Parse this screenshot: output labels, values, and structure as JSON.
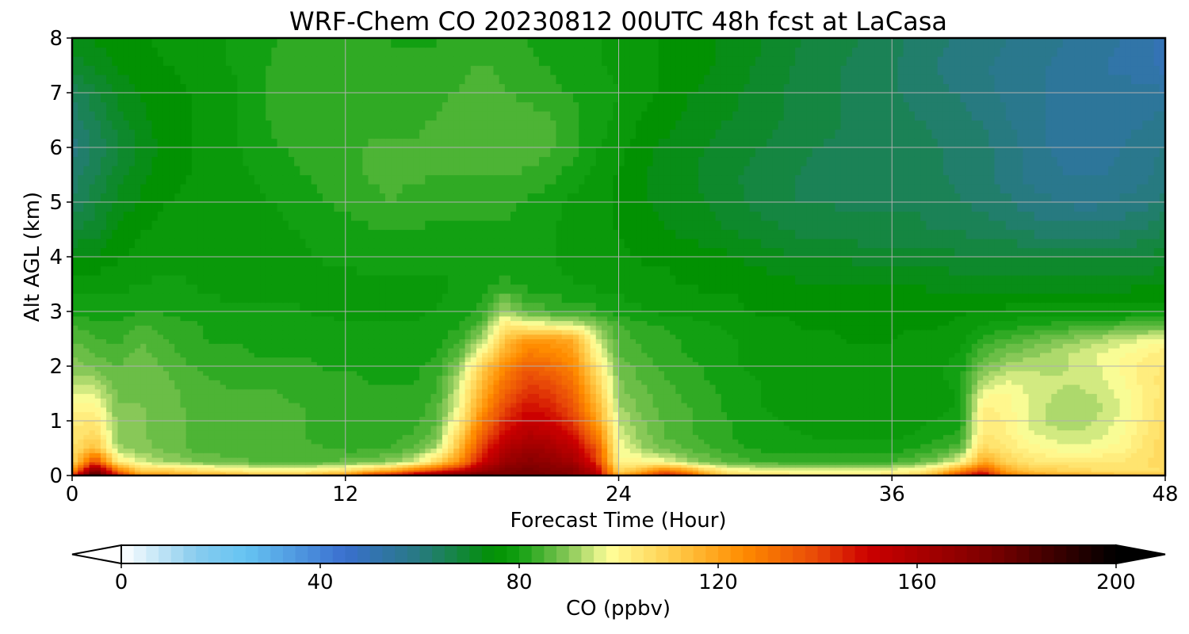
{
  "chart_data": {
    "type": "heatmap",
    "title": "WRF-Chem CO  20230812 00UTC 48h fcst at LaCasa",
    "xlabel": "Forecast Time (Hour)",
    "ylabel": "Alt AGL (km)",
    "xlim": [
      0,
      48
    ],
    "ylim": [
      0,
      8
    ],
    "xticks": [
      0,
      12,
      24,
      36,
      48
    ],
    "yticks": [
      0,
      1,
      2,
      3,
      4,
      5,
      6,
      7,
      8
    ],
    "grid": true,
    "x": [
      0,
      1,
      2,
      3,
      4,
      5,
      6,
      7,
      8,
      9,
      10,
      11,
      12,
      13,
      14,
      15,
      16,
      17,
      18,
      19,
      20,
      21,
      22,
      23,
      24,
      25,
      26,
      27,
      28,
      29,
      30,
      31,
      32,
      33,
      34,
      35,
      36,
      37,
      38,
      39,
      40,
      41,
      42,
      43,
      44,
      45,
      46,
      47,
      48
    ],
    "y": [
      0,
      0.1,
      0.25,
      0.5,
      0.75,
      1,
      1.25,
      1.5,
      1.75,
      2,
      2.25,
      2.5,
      2.75,
      3,
      3.5,
      4,
      4.5,
      5,
      5.5,
      6,
      6.5,
      7,
      7.5,
      8
    ],
    "z": [
      [
        150,
        190,
        150,
        125,
        125,
        120,
        120,
        120,
        115,
        115,
        115,
        120,
        125,
        145,
        155,
        165,
        175,
        180,
        180,
        175,
        175,
        175,
        170,
        160,
        120,
        135,
        150,
        145,
        120,
        110,
        108,
        105,
        105,
        105,
        105,
        105,
        105,
        110,
        120,
        145,
        160,
        130,
        125,
        120,
        120,
        118,
        116,
        115,
        115
      ],
      [
        120,
        175,
        130,
        110,
        110,
        108,
        105,
        102,
        100,
        100,
        100,
        102,
        105,
        112,
        118,
        130,
        140,
        150,
        165,
        172,
        175,
        172,
        170,
        155,
        108,
        115,
        130,
        120,
        108,
        100,
        98,
        98,
        97,
        97,
        97,
        97,
        98,
        100,
        108,
        125,
        140,
        120,
        112,
        110,
        108,
        106,
        106,
        106,
        106
      ],
      [
        108,
        140,
        104,
        95,
        92,
        90,
        88,
        88,
        86,
        86,
        86,
        86,
        87,
        88,
        90,
        95,
        108,
        125,
        150,
        165,
        170,
        168,
        162,
        145,
        100,
        100,
        98,
        92,
        88,
        86,
        84,
        84,
        83,
        83,
        83,
        83,
        84,
        86,
        90,
        98,
        120,
        110,
        105,
        104,
        104,
        104,
        104,
        106,
        108
      ],
      [
        106,
        115,
        92,
        90,
        88,
        86,
        85,
        84,
        84,
        84,
        84,
        84,
        83,
        83,
        84,
        86,
        92,
        115,
        142,
        158,
        165,
        162,
        155,
        138,
        98,
        92,
        88,
        86,
        84,
        82,
        81,
        80,
        80,
        80,
        80,
        80,
        80,
        81,
        83,
        86,
        108,
        104,
        100,
        98,
        97,
        98,
        100,
        104,
        108
      ],
      [
        104,
        108,
        90,
        89,
        88,
        86,
        85,
        84,
        84,
        84,
        84,
        83,
        83,
        83,
        83,
        84,
        88,
        108,
        135,
        150,
        158,
        155,
        148,
        130,
        96,
        90,
        86,
        84,
        83,
        81,
        80,
        79,
        79,
        78,
        78,
        78,
        78,
        79,
        80,
        82,
        104,
        102,
        97,
        95,
        94,
        95,
        98,
        103,
        108
      ],
      [
        103,
        104,
        90,
        89,
        88,
        86,
        85,
        84,
        85,
        84,
        84,
        83,
        83,
        82,
        82,
        83,
        86,
        102,
        128,
        145,
        152,
        150,
        142,
        122,
        94,
        89,
        86,
        84,
        83,
        81,
        80,
        79,
        78,
        78,
        77,
        77,
        77,
        78,
        79,
        80,
        103,
        101,
        96,
        93,
        92,
        94,
        97,
        102,
        107
      ],
      [
        100,
        100,
        89,
        89,
        88,
        86,
        85,
        84,
        84,
        84,
        84,
        83,
        82,
        82,
        82,
        82,
        85,
        98,
        122,
        140,
        148,
        146,
        138,
        118,
        92,
        88,
        85,
        84,
        82,
        80,
        79,
        78,
        77,
        77,
        77,
        77,
        77,
        77,
        78,
        79,
        102,
        100,
        96,
        93,
        92,
        93,
        96,
        101,
        106
      ],
      [
        96,
        96,
        88,
        88,
        87,
        86,
        85,
        84,
        84,
        84,
        83,
        82,
        82,
        82,
        82,
        82,
        84,
        96,
        118,
        135,
        144,
        142,
        134,
        114,
        90,
        87,
        85,
        83,
        82,
        80,
        79,
        78,
        77,
        77,
        77,
        77,
        77,
        77,
        78,
        79,
        98,
        99,
        96,
        94,
        93,
        94,
        97,
        101,
        105
      ],
      [
        92,
        92,
        87,
        87,
        87,
        85,
        84,
        83,
        83,
        83,
        82,
        82,
        82,
        81,
        81,
        81,
        83,
        94,
        114,
        130,
        140,
        138,
        130,
        110,
        89,
        86,
        84,
        82,
        81,
        80,
        79,
        78,
        77,
        77,
        77,
        77,
        77,
        77,
        78,
        80,
        92,
        96,
        95,
        94,
        94,
        95,
        98,
        102,
        105
      ],
      [
        90,
        88,
        86,
        88,
        86,
        84,
        83,
        83,
        82,
        82,
        82,
        81,
        81,
        81,
        81,
        81,
        82,
        90,
        110,
        125,
        135,
        132,
        126,
        106,
        88,
        85,
        83,
        82,
        81,
        79,
        78,
        77,
        77,
        77,
        77,
        77,
        77,
        77,
        78,
        80,
        88,
        92,
        93,
        93,
        94,
        96,
        99,
        102,
        104
      ],
      [
        88,
        86,
        85,
        87,
        85,
        83,
        82,
        82,
        81,
        81,
        81,
        81,
        80,
        80,
        80,
        80,
        81,
        86,
        100,
        118,
        128,
        126,
        122,
        100,
        86,
        84,
        82,
        81,
        80,
        79,
        78,
        77,
        77,
        77,
        77,
        77,
        77,
        77,
        78,
        79,
        85,
        88,
        90,
        92,
        94,
        96,
        98,
        100,
        103
      ],
      [
        86,
        84,
        83,
        86,
        84,
        82,
        81,
        81,
        81,
        80,
        80,
        80,
        80,
        80,
        80,
        80,
        80,
        83,
        92,
        112,
        122,
        122,
        118,
        96,
        85,
        83,
        82,
        81,
        80,
        79,
        78,
        77,
        77,
        77,
        76,
        76,
        76,
        77,
        77,
        78,
        82,
        84,
        86,
        88,
        90,
        92,
        94,
        96,
        98
      ],
      [
        84,
        82,
        82,
        84,
        83,
        82,
        81,
        80,
        80,
        80,
        80,
        80,
        79,
        79,
        79,
        79,
        80,
        81,
        86,
        104,
        100,
        98,
        96,
        90,
        84,
        82,
        81,
        80,
        79,
        78,
        77,
        77,
        76,
        76,
        76,
        76,
        76,
        76,
        76,
        77,
        79,
        80,
        81,
        82,
        83,
        84,
        85,
        86,
        86
      ],
      [
        80,
        80,
        80,
        81,
        81,
        80,
        80,
        79,
        79,
        79,
        79,
        78,
        78,
        78,
        78,
        78,
        79,
        80,
        82,
        92,
        86,
        84,
        83,
        82,
        80,
        79,
        78,
        78,
        77,
        77,
        76,
        76,
        76,
        75,
        75,
        75,
        75,
        75,
        75,
        76,
        76,
        77,
        77,
        77,
        77,
        77,
        77,
        78,
        78
      ],
      [
        78,
        78,
        78,
        79,
        79,
        79,
        78,
        78,
        78,
        78,
        78,
        78,
        78,
        78,
        78,
        78,
        78,
        79,
        80,
        82,
        80,
        79,
        79,
        78,
        78,
        77,
        77,
        76,
        76,
        76,
        75,
        75,
        74,
        74,
        74,
        74,
        74,
        74,
        73,
        73,
        73,
        73,
        73,
        73,
        73,
        73,
        73,
        73,
        73
      ],
      [
        74,
        74,
        76,
        77,
        78,
        78,
        78,
        78,
        78,
        78,
        78,
        79,
        79,
        80,
        80,
        80,
        80,
        80,
        80,
        80,
        80,
        79,
        78,
        78,
        77,
        76,
        76,
        75,
        75,
        74,
        73,
        72,
        71,
        71,
        71,
        70,
        70,
        70,
        70,
        69,
        69,
        69,
        69,
        68,
        68,
        68,
        68,
        69,
        70
      ],
      [
        68,
        70,
        74,
        76,
        77,
        78,
        78,
        78,
        78,
        78,
        79,
        80,
        80,
        81,
        81,
        81,
        81,
        81,
        81,
        81,
        80,
        79,
        78,
        77,
        76,
        75,
        74,
        73,
        72,
        71,
        70,
        69,
        68,
        68,
        67,
        67,
        67,
        67,
        66,
        66,
        65,
        64,
        63,
        62,
        62,
        62,
        63,
        64,
        66
      ],
      [
        64,
        68,
        72,
        74,
        76,
        77,
        77,
        78,
        78,
        79,
        80,
        81,
        82,
        83,
        84,
        83,
        82,
        82,
        82,
        82,
        81,
        80,
        78,
        77,
        76,
        74,
        73,
        72,
        71,
        70,
        68,
        67,
        66,
        66,
        66,
        66,
        66,
        66,
        65,
        64,
        63,
        62,
        60,
        59,
        58,
        58,
        59,
        60,
        62
      ],
      [
        62,
        66,
        70,
        73,
        75,
        76,
        77,
        78,
        79,
        80,
        81,
        82,
        83,
        84,
        84,
        84,
        84,
        84,
        84,
        84,
        83,
        82,
        80,
        78,
        76,
        74,
        73,
        72,
        70,
        69,
        68,
        67,
        66,
        65,
        65,
        65,
        65,
        65,
        64,
        63,
        62,
        60,
        58,
        57,
        56,
        56,
        57,
        58,
        60
      ],
      [
        60,
        64,
        68,
        72,
        74,
        76,
        77,
        78,
        80,
        81,
        82,
        83,
        83,
        84,
        84,
        84,
        85,
        85,
        86,
        86,
        86,
        84,
        82,
        79,
        77,
        75,
        73,
        72,
        71,
        70,
        69,
        68,
        67,
        66,
        66,
        66,
        66,
        65,
        64,
        63,
        62,
        60,
        58,
        56,
        55,
        55,
        56,
        57,
        59
      ],
      [
        62,
        66,
        70,
        73,
        75,
        76,
        77,
        78,
        80,
        82,
        83,
        83,
        83,
        83,
        83,
        83,
        84,
        85,
        86,
        86,
        85,
        84,
        82,
        80,
        78,
        76,
        75,
        73,
        72,
        71,
        70,
        69,
        68,
        67,
        66,
        65,
        65,
        64,
        63,
        62,
        61,
        59,
        57,
        56,
        55,
        55,
        56,
        56,
        57
      ],
      [
        64,
        68,
        72,
        74,
        75,
        76,
        77,
        78,
        80,
        82,
        84,
        83,
        82,
        82,
        82,
        82,
        83,
        84,
        85,
        84,
        83,
        82,
        81,
        80,
        79,
        77,
        76,
        74,
        73,
        72,
        70,
        69,
        68,
        67,
        66,
        65,
        64,
        63,
        62,
        61,
        60,
        58,
        57,
        56,
        55,
        55,
        55,
        55,
        54
      ],
      [
        70,
        72,
        74,
        75,
        76,
        77,
        78,
        79,
        80,
        82,
        83,
        83,
        82,
        82,
        82,
        82,
        82,
        83,
        84,
        83,
        82,
        81,
        80,
        79,
        78,
        77,
        76,
        75,
        74,
        73,
        71,
        70,
        68,
        67,
        66,
        65,
        64,
        62,
        61,
        60,
        59,
        58,
        57,
        56,
        55,
        54,
        53,
        52,
        50
      ],
      [
        72,
        74,
        75,
        76,
        77,
        77,
        78,
        79,
        80,
        81,
        82,
        82,
        82,
        82,
        81,
        81,
        81,
        82,
        82,
        82,
        81,
        80,
        80,
        79,
        78,
        77,
        76,
        75,
        74,
        73,
        72,
        70,
        69,
        68,
        67,
        66,
        65,
        63,
        62,
        61,
        60,
        59,
        58,
        57,
        56,
        55,
        54,
        52,
        50
      ]
    ],
    "colorbar": {
      "label": "CO  (ppbv)",
      "ticks": [
        "0",
        "40",
        "80",
        "120",
        "160",
        "200"
      ],
      "tick_values": [
        0,
        40,
        80,
        120,
        160,
        200
      ],
      "min": 0,
      "max": 200,
      "extend": "both",
      "colormap_stops": [
        {
          "value": 0,
          "color": "#ffffff"
        },
        {
          "value": 15,
          "color": "#88ccee"
        },
        {
          "value": 25,
          "color": "#66c4f2"
        },
        {
          "value": 45,
          "color": "#3a6fcf"
        },
        {
          "value": 60,
          "color": "#277a80"
        },
        {
          "value": 75,
          "color": "#029102"
        },
        {
          "value": 80,
          "color": "#12a012"
        },
        {
          "value": 90,
          "color": "#88c858"
        },
        {
          "value": 98,
          "color": "#ffff99"
        },
        {
          "value": 112,
          "color": "#ffc845"
        },
        {
          "value": 125,
          "color": "#ff8c00"
        },
        {
          "value": 140,
          "color": "#e84808"
        },
        {
          "value": 150,
          "color": "#cc0000"
        },
        {
          "value": 175,
          "color": "#7a0000"
        },
        {
          "value": 200,
          "color": "#000000"
        }
      ]
    }
  }
}
